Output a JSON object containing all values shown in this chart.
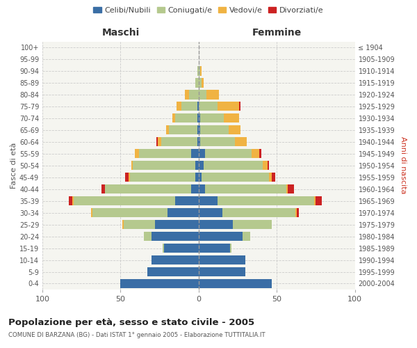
{
  "age_groups": [
    "0-4",
    "5-9",
    "10-14",
    "15-19",
    "20-24",
    "25-29",
    "30-34",
    "35-39",
    "40-44",
    "45-49",
    "50-54",
    "55-59",
    "60-64",
    "65-69",
    "70-74",
    "75-79",
    "80-84",
    "85-89",
    "90-94",
    "95-99",
    "100+"
  ],
  "birth_years": [
    "2000-2004",
    "1995-1999",
    "1990-1994",
    "1985-1989",
    "1980-1984",
    "1975-1979",
    "1970-1974",
    "1965-1969",
    "1960-1964",
    "1955-1959",
    "1950-1954",
    "1945-1949",
    "1940-1944",
    "1935-1939",
    "1930-1934",
    "1925-1929",
    "1920-1924",
    "1915-1919",
    "1910-1914",
    "1905-1909",
    "≤ 1904"
  ],
  "maschi": {
    "celibi": [
      50,
      33,
      30,
      22,
      30,
      28,
      20,
      15,
      5,
      2,
      2,
      5,
      1,
      1,
      1,
      1,
      0,
      0,
      0,
      0,
      0
    ],
    "coniugati": [
      0,
      0,
      0,
      1,
      5,
      20,
      48,
      65,
      55,
      42,
      40,
      33,
      23,
      18,
      14,
      10,
      6,
      2,
      1,
      0,
      0
    ],
    "vedovi": [
      0,
      0,
      0,
      0,
      0,
      1,
      1,
      1,
      0,
      1,
      1,
      3,
      2,
      2,
      2,
      3,
      3,
      0,
      0,
      0,
      0
    ],
    "divorziati": [
      0,
      0,
      0,
      0,
      0,
      0,
      0,
      2,
      2,
      2,
      0,
      0,
      1,
      0,
      0,
      0,
      0,
      0,
      0,
      0,
      0
    ]
  },
  "femmine": {
    "nubili": [
      47,
      30,
      30,
      20,
      28,
      22,
      15,
      12,
      4,
      2,
      3,
      4,
      1,
      1,
      1,
      0,
      0,
      0,
      0,
      0,
      0
    ],
    "coniugate": [
      0,
      0,
      0,
      1,
      5,
      25,
      47,
      62,
      52,
      43,
      38,
      30,
      22,
      18,
      15,
      12,
      5,
      2,
      1,
      0,
      0
    ],
    "vedove": [
      0,
      0,
      0,
      0,
      0,
      0,
      1,
      1,
      1,
      2,
      3,
      5,
      8,
      8,
      10,
      14,
      8,
      1,
      1,
      0,
      0
    ],
    "divorziate": [
      0,
      0,
      0,
      0,
      0,
      0,
      1,
      4,
      4,
      2,
      1,
      1,
      0,
      0,
      0,
      1,
      0,
      0,
      0,
      0,
      0
    ]
  },
  "colors": {
    "celibi": "#3a6ea5",
    "coniugati": "#b5c98e",
    "vedovi": "#f0b343",
    "divorziati": "#cc2222"
  },
  "title": "Popolazione per età, sesso e stato civile - 2005",
  "subtitle": "COMUNE DI BARZANA (BG) - Dati ISTAT 1° gennaio 2005 - Elaborazione TUTTITALIA.IT",
  "xlabel_left": "Maschi",
  "xlabel_right": "Femmine",
  "ylabel_left": "Fasce di età",
  "ylabel_right": "Anni di nascita",
  "xlim": 100,
  "bg_color": "#f5f5f0",
  "plot_bg": "#f5f5f0",
  "grid_color": "#cccccc",
  "legend_labels": [
    "Celibi/Nubili",
    "Coniugati/e",
    "Vedovi/e",
    "Divorziati/e"
  ]
}
